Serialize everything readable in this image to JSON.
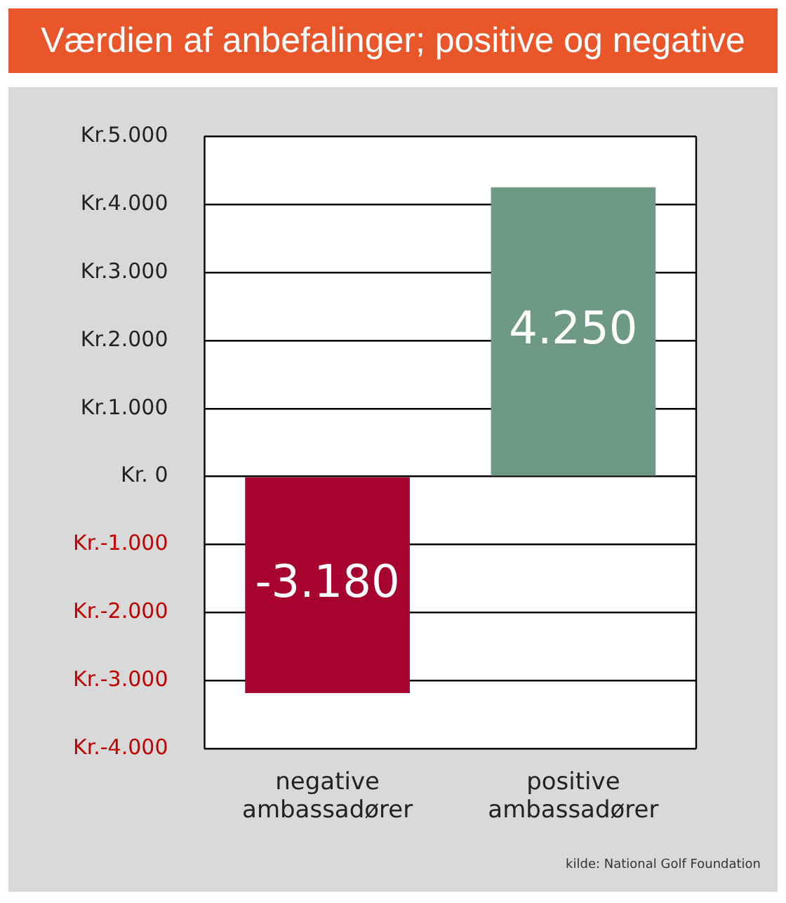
{
  "chart_data": {
    "type": "bar",
    "title": "Værdien af anbefalinger; positive og negative",
    "categories": [
      "negative ambassadører",
      "positive ambassadører"
    ],
    "values": [
      -3180,
      4250
    ],
    "colors": [
      "#a6032f",
      "#6e9a85"
    ],
    "value_labels": [
      "-3.180",
      "4.250"
    ],
    "ylim": [
      -4000,
      5000
    ],
    "yticks": [
      {
        "value": 5000,
        "label": "Kr.5.000"
      },
      {
        "value": 4000,
        "label": "Kr.4.000"
      },
      {
        "value": 3000,
        "label": "Kr.3.000"
      },
      {
        "value": 2000,
        "label": "Kr.2.000"
      },
      {
        "value": 1000,
        "label": "Kr.1.000"
      },
      {
        "value": 0,
        "label": "Kr. 0"
      },
      {
        "value": -1000,
        "label": "Kr.-1.000"
      },
      {
        "value": -2000,
        "label": "Kr.-2.000"
      },
      {
        "value": -3000,
        "label": "Kr.-3.000"
      },
      {
        "value": -4000,
        "label": "Kr.-4.000"
      }
    ],
    "grid": "y",
    "annotations": [
      "kilde: National Golf Foundation"
    ]
  }
}
